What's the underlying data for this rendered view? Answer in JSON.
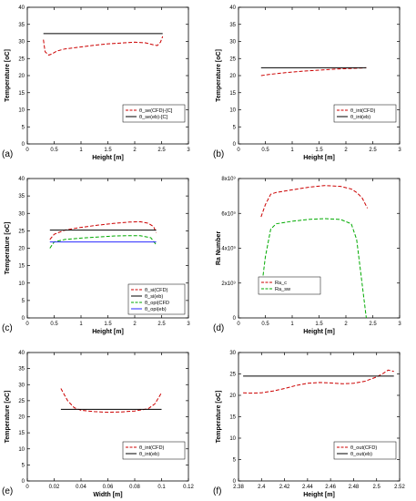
{
  "chart_data": [
    {
      "panel_label": "(a)",
      "type": "line",
      "xlabel": "Height [m]",
      "ylabel": "Temperature [oC]",
      "xlim": [
        0,
        3
      ],
      "ylim": [
        0,
        40
      ],
      "xticks": [
        "0",
        "0.5",
        "1",
        "1.5",
        "2",
        "2.5",
        "3"
      ],
      "yticks": [
        "0",
        "5",
        "10",
        "15",
        "20",
        "25",
        "30",
        "35",
        "40"
      ],
      "legend": "bottom-right",
      "series": [
        {
          "name": "θ_se(CFD)-[C]",
          "style": "dashed",
          "color": "#cc0000",
          "x": [
            0.3,
            0.33,
            0.4,
            0.45,
            0.55,
            0.7,
            0.9,
            1.2,
            1.5,
            1.8,
            2.0,
            2.2,
            2.35,
            2.42,
            2.48,
            2.52
          ],
          "y": [
            30.5,
            27.0,
            26.0,
            26.3,
            27.2,
            27.8,
            28.2,
            28.8,
            29.3,
            29.6,
            29.8,
            29.6,
            29.0,
            28.8,
            29.8,
            31.5
          ]
        },
        {
          "name": "θ_se(eb)-[C]",
          "style": "solid",
          "color": "#000000",
          "x": [
            0.3,
            2.52
          ],
          "y": [
            32.3,
            32.3
          ]
        }
      ]
    },
    {
      "panel_label": "(b)",
      "type": "line",
      "xlabel": "Height [m]",
      "ylabel": "Temperature [oC]",
      "xlim": [
        0,
        3
      ],
      "ylim": [
        0,
        40
      ],
      "xticks": [
        "0",
        "0.5",
        "1",
        "1.5",
        "2",
        "2.5",
        "3"
      ],
      "yticks": [
        "0",
        "5",
        "10",
        "15",
        "20",
        "25",
        "30",
        "35",
        "40"
      ],
      "legend": "bottom-right",
      "series": [
        {
          "name": "θ_int(CFD)",
          "style": "dashed",
          "color": "#cc0000",
          "x": [
            0.42,
            0.6,
            0.9,
            1.2,
            1.5,
            1.8,
            2.1,
            2.38
          ],
          "y": [
            20.0,
            20.4,
            20.9,
            21.3,
            21.6,
            21.9,
            22.1,
            22.3
          ]
        },
        {
          "name": "θ_int(eb)",
          "style": "solid",
          "color": "#000000",
          "x": [
            0.42,
            2.38
          ],
          "y": [
            22.3,
            22.3
          ]
        }
      ]
    },
    {
      "panel_label": "(c)",
      "type": "line",
      "xlabel": "Height [m]",
      "ylabel": "Temperature [oC]",
      "xlim": [
        0,
        3
      ],
      "ylim": [
        0,
        40
      ],
      "xticks": [
        "0",
        "0.5",
        "1",
        "1.5",
        "2",
        "2.5",
        "3"
      ],
      "yticks": [
        "0",
        "5",
        "10",
        "15",
        "20",
        "25",
        "30",
        "35",
        "40"
      ],
      "legend": "bottom-right",
      "series": [
        {
          "name": "θ_si(CFD)",
          "style": "dashed",
          "color": "#cc0000",
          "x": [
            0.42,
            0.5,
            0.7,
            1.0,
            1.3,
            1.6,
            1.9,
            2.1,
            2.25,
            2.35,
            2.4
          ],
          "y": [
            22.5,
            24.0,
            25.2,
            26.0,
            26.6,
            27.1,
            27.5,
            27.6,
            27.2,
            26.2,
            24.5
          ]
        },
        {
          "name": "θ_si(eb)",
          "style": "solid",
          "color": "#000000",
          "x": [
            0.42,
            2.4
          ],
          "y": [
            25.2,
            25.2
          ]
        },
        {
          "name": "θ_opi(CFD",
          "style": "dashed",
          "color": "#00aa00",
          "x": [
            0.42,
            0.5,
            0.7,
            1.0,
            1.3,
            1.6,
            1.9,
            2.1,
            2.3,
            2.4
          ],
          "y": [
            20.0,
            21.8,
            22.5,
            22.9,
            23.2,
            23.5,
            23.6,
            23.6,
            23.0,
            21.0
          ]
        },
        {
          "name": "θ_opi(eb)",
          "style": "solid",
          "color": "#2a2aff",
          "x": [
            0.42,
            2.4
          ],
          "y": [
            21.8,
            21.8
          ]
        }
      ]
    },
    {
      "panel_label": "(d)",
      "type": "line",
      "xlabel": "Height [m]",
      "ylabel": "Ra Number",
      "xlim": [
        0,
        3
      ],
      "ylim": [
        0,
        8
      ],
      "xticks": [
        "0",
        "0.5",
        "1",
        "1.5",
        "2",
        "2.5",
        "3"
      ],
      "yticks": [
        "0",
        "2x10⁹",
        "4x10⁹",
        "6x10⁹",
        "8x10⁹"
      ],
      "legend": "bottom-left",
      "series": [
        {
          "name": "Ra_c",
          "style": "dashed",
          "color": "#cc0000",
          "x": [
            0.42,
            0.5,
            0.6,
            0.7,
            1.0,
            1.3,
            1.6,
            1.9,
            2.1,
            2.2,
            2.3,
            2.4
          ],
          "y": [
            5.8,
            6.5,
            7.1,
            7.2,
            7.35,
            7.5,
            7.6,
            7.55,
            7.4,
            7.2,
            6.9,
            6.3
          ]
        },
        {
          "name": "Ra_sw",
          "style": "dashed",
          "color": "#00aa00",
          "x": [
            0.42,
            0.5,
            0.6,
            0.7,
            1.0,
            1.3,
            1.6,
            1.9,
            2.1,
            2.2,
            2.3,
            2.38
          ],
          "y": [
            1.5,
            3.5,
            5.1,
            5.4,
            5.55,
            5.65,
            5.7,
            5.65,
            5.4,
            4.5,
            2.0,
            0.0
          ]
        }
      ]
    },
    {
      "panel_label": "(e)",
      "type": "line",
      "xlabel": "Width [m]",
      "ylabel": "Temperature [oC]",
      "xlim": [
        0,
        0.12
      ],
      "ylim": [
        0,
        40
      ],
      "xticks": [
        "0",
        "0.02",
        "0.04",
        "0.06",
        "0.08",
        "0.1",
        "0.12"
      ],
      "yticks": [
        "0",
        "5",
        "10",
        "15",
        "20",
        "25",
        "30",
        "35",
        "40"
      ],
      "legend": "bottom-right",
      "series": [
        {
          "name": "θ_int(CFD)",
          "style": "dashed",
          "color": "#cc0000",
          "x": [
            0.025,
            0.03,
            0.035,
            0.04,
            0.05,
            0.06,
            0.07,
            0.08,
            0.09,
            0.095,
            0.1
          ],
          "y": [
            28.8,
            25.0,
            22.8,
            22.0,
            21.6,
            21.4,
            21.5,
            21.8,
            22.5,
            24.0,
            27.5
          ]
        },
        {
          "name": "θ_int(eb)",
          "style": "solid",
          "color": "#000000",
          "x": [
            0.025,
            0.1
          ],
          "y": [
            22.3,
            22.3
          ]
        }
      ]
    },
    {
      "panel_label": "(f)",
      "type": "line",
      "xlabel": "Height [m]",
      "ylabel": "Temperature [oC]",
      "xlim": [
        2.38,
        2.52
      ],
      "ylim": [
        0,
        30
      ],
      "xticks": [
        "2.38",
        "2.4",
        "2.42",
        "2.44",
        "2.46",
        "2.48",
        "2.5",
        "2.52"
      ],
      "yticks": [
        "0",
        "5",
        "10",
        "15",
        "20",
        "25",
        "30"
      ],
      "legend": "bottom-right",
      "series": [
        {
          "name": "θ_out(CFD)",
          "style": "dashed",
          "color": "#cc0000",
          "x": [
            2.384,
            2.39,
            2.4,
            2.41,
            2.42,
            2.43,
            2.44,
            2.45,
            2.46,
            2.47,
            2.48,
            2.49,
            2.5,
            2.505,
            2.51,
            2.515
          ],
          "y": [
            20.6,
            20.5,
            20.6,
            21.0,
            21.6,
            22.3,
            22.8,
            23.0,
            22.9,
            22.7,
            22.8,
            23.3,
            24.3,
            25.0,
            25.9,
            25.6
          ]
        },
        {
          "name": "θ_out(eb)",
          "style": "solid",
          "color": "#000000",
          "x": [
            2.384,
            2.515
          ],
          "y": [
            24.5,
            24.5
          ]
        }
      ]
    }
  ]
}
